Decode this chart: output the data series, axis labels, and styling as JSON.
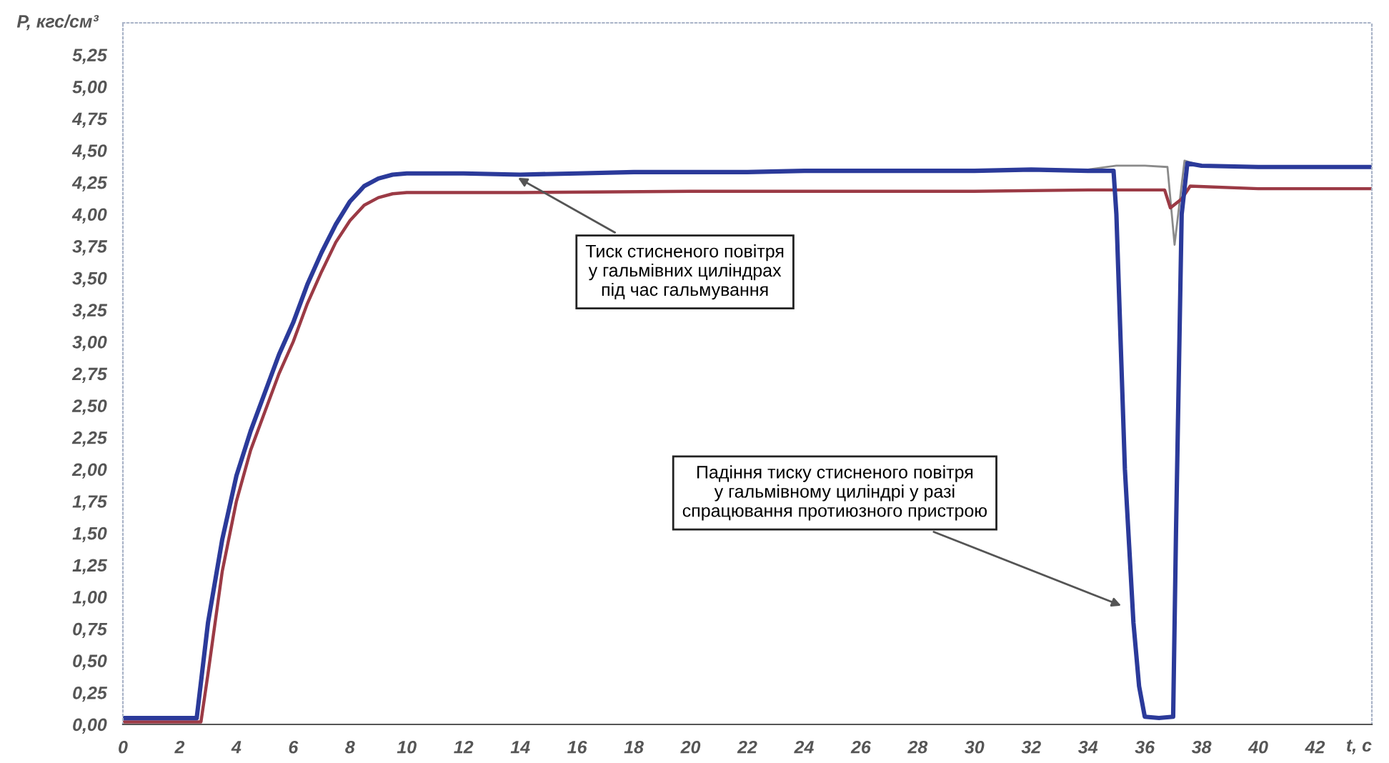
{
  "chart_data": {
    "type": "line",
    "ylabel": "P, кгс/см³",
    "xlabel": "t, c",
    "xlim": [
      0,
      44
    ],
    "ylim": [
      0,
      5.5
    ],
    "xticks": [
      0,
      2,
      4,
      6,
      8,
      10,
      12,
      14,
      16,
      18,
      20,
      22,
      24,
      26,
      28,
      30,
      32,
      34,
      36,
      38,
      40,
      42
    ],
    "yticks": [
      {
        "value": 0,
        "label": "0,00"
      },
      {
        "value": 0.25,
        "label": "0,25"
      },
      {
        "value": 0.5,
        "label": "0,50"
      },
      {
        "value": 0.75,
        "label": "0,75"
      },
      {
        "value": 1,
        "label": "1,00"
      },
      {
        "value": 1.25,
        "label": "1,25"
      },
      {
        "value": 1.5,
        "label": "1,50"
      },
      {
        "value": 1.75,
        "label": "1,75"
      },
      {
        "value": 2,
        "label": "2,00"
      },
      {
        "value": 2.25,
        "label": "2,25"
      },
      {
        "value": 2.5,
        "label": "2,50"
      },
      {
        "value": 2.75,
        "label": "2,75"
      },
      {
        "value": 3,
        "label": "3,00"
      },
      {
        "value": 3.25,
        "label": "3,25"
      },
      {
        "value": 3.5,
        "label": "3,50"
      },
      {
        "value": 3.75,
        "label": "3,75"
      },
      {
        "value": 4,
        "label": "4,00"
      },
      {
        "value": 4.25,
        "label": "4,25"
      },
      {
        "value": 4.5,
        "label": "4,50"
      },
      {
        "value": 4.75,
        "label": "4,75"
      },
      {
        "value": 5,
        "label": "5,00"
      },
      {
        "value": 5.25,
        "label": "5,25"
      }
    ],
    "grid": false,
    "marker": "none",
    "line_style": "solid",
    "series": [
      {
        "color": "#8a8a8a",
        "x": [
          34,
          35,
          36,
          36.8,
          37.05,
          37.4,
          38,
          40,
          44
        ],
        "values": [
          4.35,
          4.38,
          4.38,
          4.37,
          3.76,
          4.42,
          4.38,
          4.37,
          4.37
        ]
      },
      {
        "color": "#9b3a45",
        "x": [
          0,
          2.75,
          3,
          3.5,
          4,
          4.5,
          5,
          5.5,
          6,
          6.5,
          7,
          7.5,
          8,
          8.5,
          9,
          9.5,
          10,
          14,
          20,
          26,
          30,
          34,
          36,
          36.7,
          36.9,
          37.3,
          37.6,
          40,
          44
        ],
        "values": [
          0.02,
          0.02,
          0.4,
          1.2,
          1.75,
          2.15,
          2.45,
          2.75,
          3.0,
          3.3,
          3.55,
          3.78,
          3.95,
          4.07,
          4.13,
          4.16,
          4.17,
          4.17,
          4.18,
          4.18,
          4.18,
          4.19,
          4.19,
          4.19,
          4.05,
          4.12,
          4.22,
          4.2,
          4.2
        ]
      },
      {
        "color": "#2b3a9a",
        "x": [
          0,
          2.6,
          3,
          3.5,
          4,
          4.5,
          5,
          5.5,
          6,
          6.5,
          7,
          7.5,
          8,
          8.5,
          9,
          9.5,
          10,
          12,
          14,
          16,
          18,
          20,
          22,
          24,
          26,
          28,
          30,
          32,
          34,
          34.9,
          35,
          35.3,
          35.6,
          35.8,
          36,
          36.5,
          37,
          37.1,
          37.3,
          37.5,
          38,
          40,
          42,
          44
        ],
        "values": [
          0.05,
          0.05,
          0.8,
          1.45,
          1.95,
          2.3,
          2.6,
          2.9,
          3.15,
          3.45,
          3.7,
          3.92,
          4.1,
          4.22,
          4.28,
          4.31,
          4.32,
          4.32,
          4.31,
          4.32,
          4.33,
          4.33,
          4.33,
          4.34,
          4.34,
          4.34,
          4.34,
          4.35,
          4.34,
          4.34,
          4.0,
          2.0,
          0.8,
          0.3,
          0.06,
          0.05,
          0.06,
          1.5,
          4.0,
          4.4,
          4.38,
          4.37,
          4.37,
          4.37
        ]
      }
    ],
    "annotations": [
      {
        "text": "Тиск стисненого повітря\nу гальмівних циліндрах\nпід час гальмування",
        "x": 13.8,
        "y": 4.3
      },
      {
        "text": "Падіння тиску стисненого повітря\nу гальмівному циліндрі у разі\nспрацювання протиюзного пристрою",
        "x": 35.3,
        "y": 0.92
      }
    ]
  }
}
